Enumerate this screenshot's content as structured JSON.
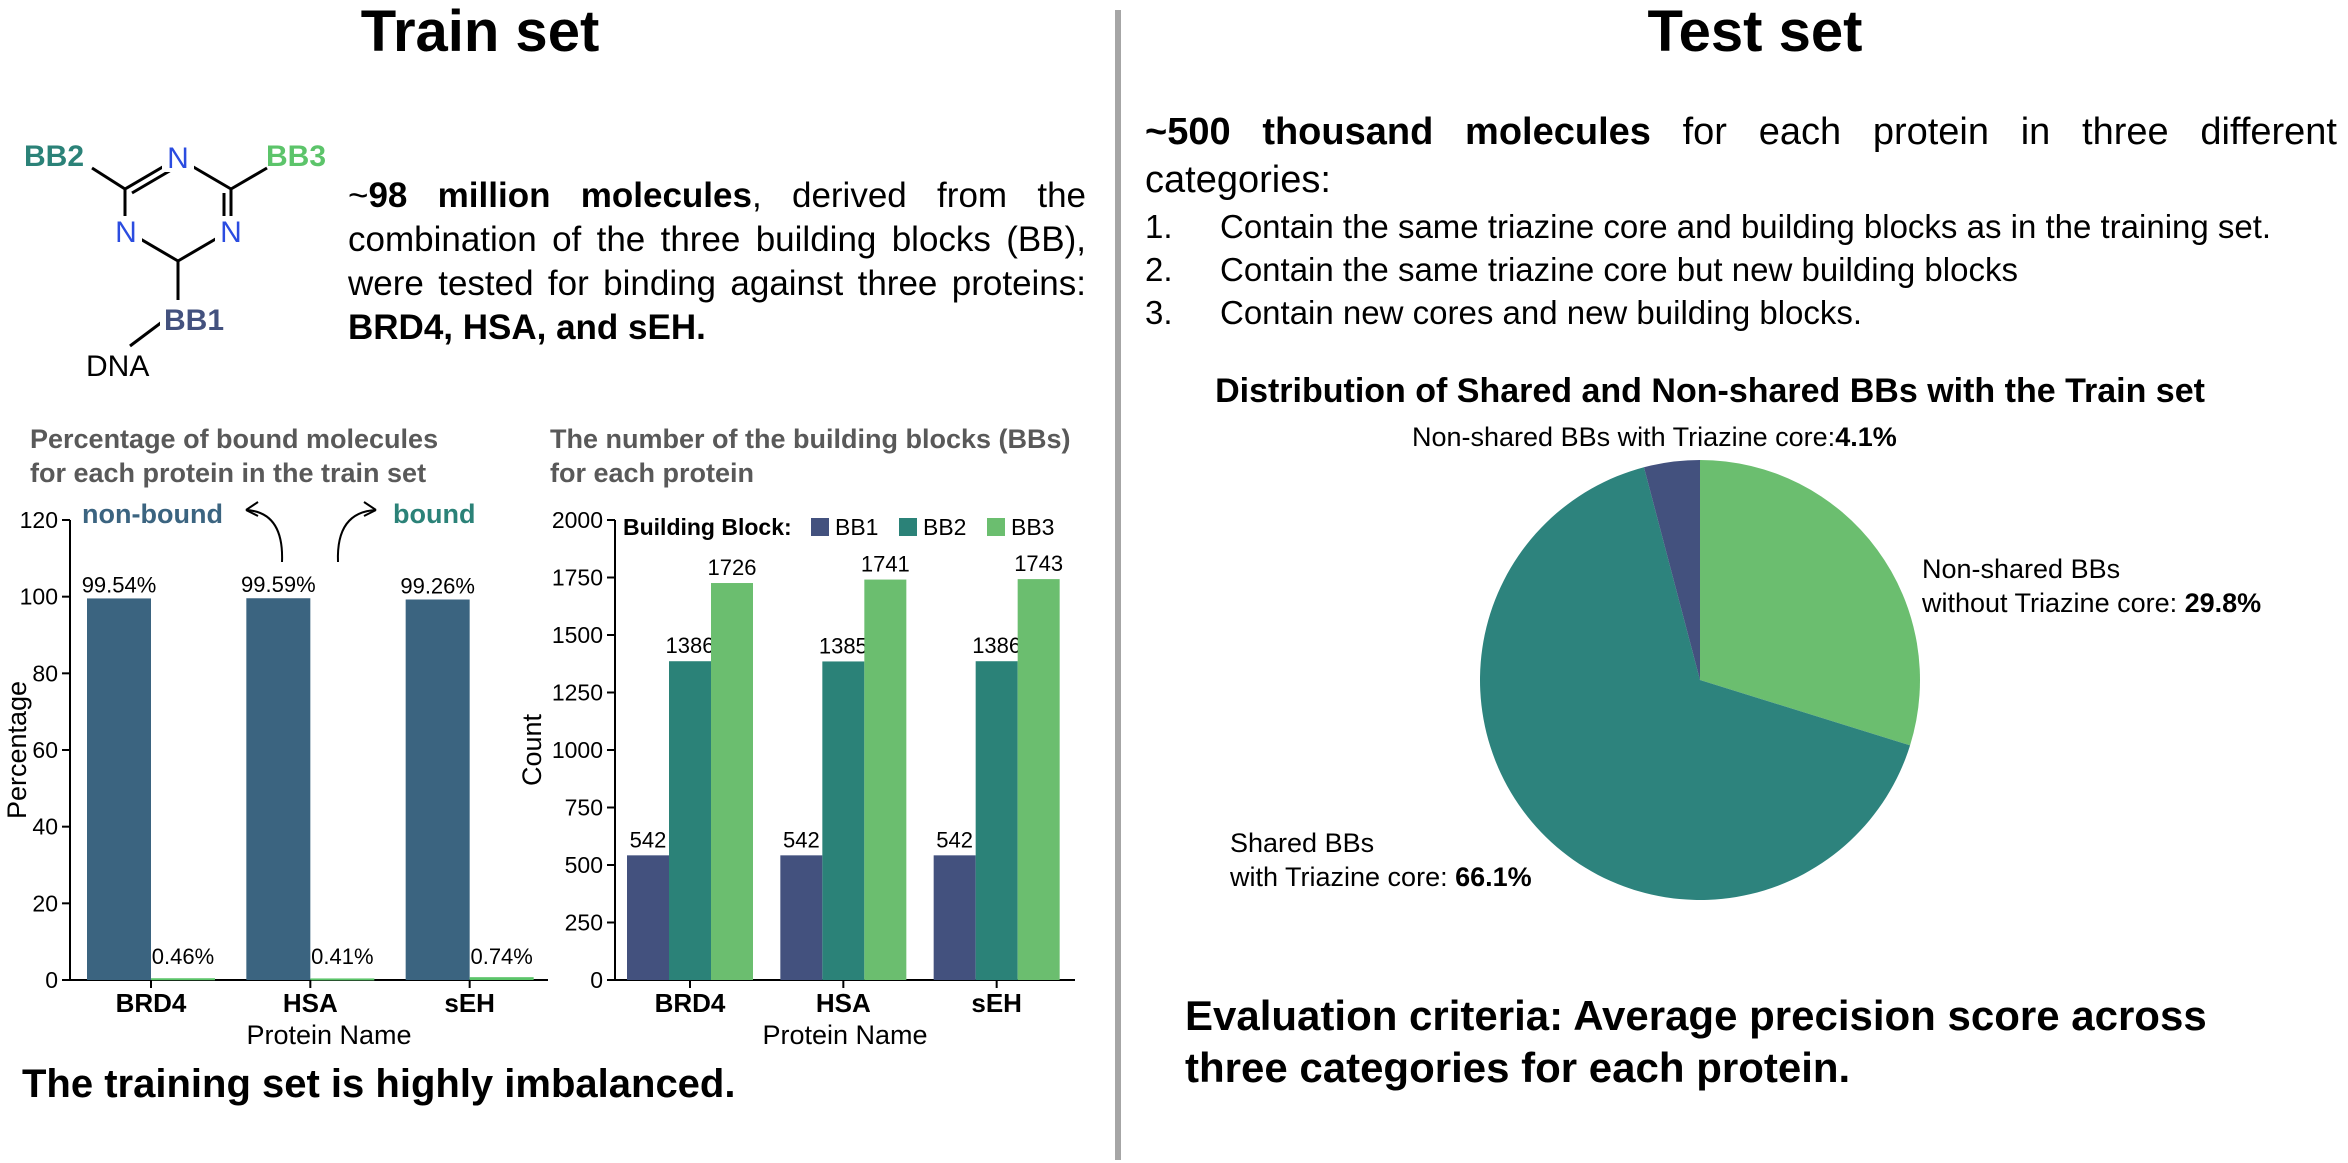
{
  "titles": {
    "train": "Train set",
    "test": "Test set"
  },
  "molecule": {
    "bb1": "BB1",
    "bb2": "BB2",
    "bb3": "BB3",
    "n": "N",
    "dna": "DNA",
    "colors": {
      "bb1": "#43517e",
      "bb2": "#2b8278",
      "bb3": "#5cc46a",
      "n": "#2b4ce0"
    }
  },
  "train_desc": {
    "p1": "~",
    "p2": "98 million molecules",
    "p3": ", derived from the combination of the three building blocks (BB), were tested for binding against three proteins: ",
    "p4": "BRD4, HSA, and sEH."
  },
  "test_desc": {
    "lead_bold": "~500 thousand molecules",
    "lead_rest": " for each protein in three different categories:",
    "items": [
      {
        "num": "1.",
        "text": "Contain the same triazine core and building blocks as in the training set."
      },
      {
        "num": "2.",
        "text": "Contain the same triazine core but new building blocks"
      },
      {
        "num": "3.",
        "text": "Contain new cores and new building blocks."
      }
    ]
  },
  "chart1_subtitle": {
    "line1": "Percentage of bound molecules",
    "line2": "for each protein in the train set"
  },
  "chart2_subtitle": {
    "line1": "The number of the building blocks (BBs)",
    "line2": "for each protein"
  },
  "chart_data": [
    {
      "type": "bar",
      "title": "Percentage of bound molecules for each protein in the train set",
      "xlabel": "Protein Name",
      "ylabel": "Percentage",
      "ylim": [
        0,
        120
      ],
      "yticks": [
        0,
        20,
        40,
        60,
        80,
        100,
        120
      ],
      "categories": [
        "BRD4",
        "HSA",
        "sEH"
      ],
      "series": [
        {
          "name": "non-bound",
          "values": [
            99.54,
            99.59,
            99.26
          ],
          "labels": [
            "99.54%",
            "99.59%",
            "99.26%"
          ],
          "color": "#3b6480"
        },
        {
          "name": "bound",
          "values": [
            0.46,
            0.41,
            0.74
          ],
          "labels": [
            "0.46%",
            "0.41%",
            "0.74%"
          ],
          "color": "#5cc46a"
        }
      ],
      "annotations": {
        "nonbound": "non-bound",
        "bound": "bound",
        "nonbound_color": "#3b6480",
        "bound_color": "#2b8278"
      }
    },
    {
      "type": "bar",
      "title": "The number of the building blocks (BBs) for each protein",
      "xlabel": "Protein Name",
      "ylabel": "Count",
      "ylim": [
        0,
        2000
      ],
      "yticks": [
        0,
        250,
        500,
        750,
        1000,
        1250,
        1500,
        1750,
        2000
      ],
      "categories": [
        "BRD4",
        "HSA",
        "sEH"
      ],
      "legend_title": "Building Block:",
      "legend_position": "top",
      "series": [
        {
          "name": "BB1",
          "values": [
            542,
            542,
            542
          ],
          "color": "#43517e"
        },
        {
          "name": "BB2",
          "values": [
            1386,
            1385,
            1386
          ],
          "color": "#2b8278"
        },
        {
          "name": "BB3",
          "values": [
            1726,
            1741,
            1743
          ],
          "color": "#6bbe6f"
        }
      ]
    },
    {
      "type": "pie",
      "title": "Distribution of Shared and Non-shared BBs with the Train set",
      "slices": [
        {
          "name": "Non-shared BBs without Triazine core",
          "value": 29.8,
          "label_line1": "Non-shared BBs",
          "label_line2": "without Triazine core: ",
          "pct": "29.8%",
          "color": "#6bbe6f"
        },
        {
          "name": "Shared BBs with Triazine core",
          "value": 66.1,
          "label_line1": "Shared BBs",
          "label_line2": "with Triazine core: ",
          "pct": "66.1%",
          "color": "#2d837d"
        },
        {
          "name": "Non-shared BBs with Triazine core",
          "value": 4.1,
          "label_line1": "Non-shared BBs with Triazine core:",
          "label_line2": "",
          "pct": "4.1%",
          "color": "#43517e"
        }
      ]
    }
  ],
  "notes": {
    "imbalanced": "The training set is highly imbalanced.",
    "eval_line1": "Evaluation criteria: Average precision score across",
    "eval_line2": "three categories for each protein."
  }
}
